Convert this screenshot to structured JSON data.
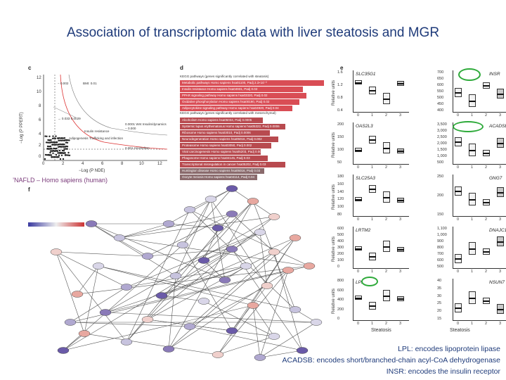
{
  "title": "Association of transcriptomic data with liver steatosis and MGR",
  "panel_labels": {
    "c": "c",
    "d": "d",
    "e": "e",
    "f": "f"
  },
  "volcano": {
    "ylabel": "−Log (P PPERT)",
    "xlabel": "−Log (P NDE)",
    "x_ticks": [
      "0",
      "2",
      "4",
      "6",
      "8",
      "10",
      "12"
    ],
    "y_ticks": [
      "12",
      "10",
      "8",
      "6",
      "4",
      "2",
      "0"
    ],
    "annotations": [
      "→ 0.033 0.0029",
      "− 0.002",
      "BMI: 0.01",
      "Insulin resistance",
      "Adipogenesis Trafficking and infection",
      "− 0.000",
      "0.001 Alcoholism",
      "0.0001 Wnt Insulin/dynamics"
    ]
  },
  "pathways": {
    "header1": "KEGG pathways (genes significantly correlated with steatosis)",
    "header2": "KEGG pathways (genes significantly correlated with mesenchymal)",
    "bars": [
      {
        "label": "Metabolic pathways Homo sapiens hsa01100, Padj 2.3×10⁻²",
        "color": "#d94d55"
      },
      {
        "label": "Insulin resistance Homo sapiens hsa04931, Padj 0.02",
        "color": "#d94d55"
      },
      {
        "label": "PPAR signaling pathway Homo sapiens hsa03320, Padj 0.02",
        "color": "#d94d55"
      },
      {
        "label": "Oxidative phosphorylation Homo sapiens hsa00190, Padj 0.02",
        "color": "#d94d55"
      },
      {
        "label": "Adipocytokine signaling pathway Homo sapiens hsa04920, Padj 0.04",
        "color": "#d94d55"
      },
      {
        "label": "Alcoholism Homo sapiens hsa05034, Padj 0.0005",
        "color": "#b84a4f"
      },
      {
        "label": "Systemic lupus erythematosus Homo sapiens hsa05322, Padj 0.0006",
        "color": "#b84a4f"
      },
      {
        "label": "Ribosome Homo sapiens hsa03010, Padj 0.0006",
        "color": "#b84a4f"
      },
      {
        "label": "Neurodegeneration Homo sapiens hsa05016, Padj 0.002",
        "color": "#b84a4f"
      },
      {
        "label": "Proteasome Homo sapiens hsa03050, Padj 0.002",
        "color": "#b84a4f"
      },
      {
        "label": "Viral carcinogenesis Homo sapiens hsa05203, Padj 0.003",
        "color": "#b84a4f"
      },
      {
        "label": "Phagosome Homo sapiens hsa04145, Padj 0.03",
        "color": "#b84a4f"
      },
      {
        "label": "Transcriptional misregulation in cancer hsa05202, Padj 0.03",
        "color": "#b84a4f"
      },
      {
        "label": "Huntington disease Homo sapiens hsa05016, Padj 0.03",
        "color": "#8a6a6c"
      },
      {
        "label": "Oocyte meiosis Homo sapiens hsa04114, Padj 0.04",
        "color": "#8a6a6c"
      }
    ]
  },
  "boxplots": {
    "xlabel": "Steatosis",
    "ylabel": "Relative units",
    "x_ticks": [
      "0",
      "1",
      "2",
      "3"
    ],
    "cells": [
      {
        "gene": "SLC35G1",
        "ticks": [
          "1.6",
          "1.2",
          "0.8",
          "0.4"
        ]
      },
      {
        "gene": "INSR",
        "ticks": [
          "700",
          "650",
          "600",
          "550",
          "500",
          "450",
          "400"
        ]
      },
      {
        "gene": "OAS2L3",
        "ticks": [
          "200",
          "150",
          "100",
          "50"
        ]
      },
      {
        "gene": "ACADSB",
        "ticks": [
          "3,500",
          "3,000",
          "2,500",
          "2,000",
          "1,500",
          "1,000",
          "500"
        ]
      },
      {
        "gene": "SLC25A3",
        "ticks": [
          "180",
          "160",
          "140",
          "120",
          "100",
          "80"
        ]
      },
      {
        "gene": "GNG7",
        "ticks": [
          "250",
          "200",
          "150"
        ]
      },
      {
        "gene": "LRTM2",
        "ticks": [
          "600",
          "500",
          "400",
          "300",
          "200",
          "100",
          "0"
        ]
      },
      {
        "gene": "DNAJC12",
        "ticks": [
          "1,100",
          "1,000",
          "900",
          "800",
          "700",
          "600",
          "500"
        ]
      },
      {
        "gene": "LPL",
        "ticks": [
          "800",
          "600",
          "400",
          "200",
          "0"
        ]
      },
      {
        "gene": "NSUN7",
        "ticks": [
          "40",
          "35",
          "30",
          "25",
          "20",
          "15"
        ]
      }
    ]
  },
  "nafld_label": "’NAFLD – Homo sapiens (human)",
  "legend": [
    "LPL: encodes lipoprotein lipase",
    "ACADSB: encodes short/branched-chain acyl-CoA dehydrogenase",
    "INSR: encodes the insulin receptor"
  ],
  "colors": {
    "title": "#1f3b7a",
    "highlight_ring": "#2eaa3a",
    "bar_red": "#d94d55",
    "node_purple": "#6a5aa8"
  }
}
